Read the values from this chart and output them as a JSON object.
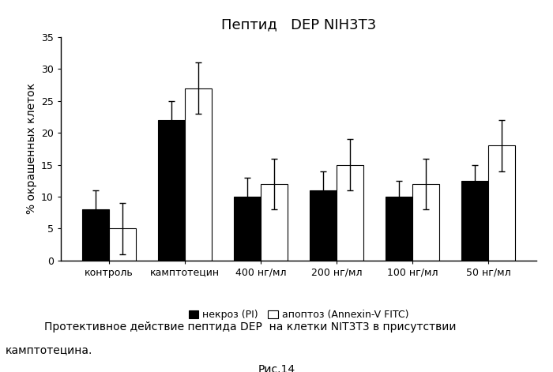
{
  "title": "Пептид   DEP NIH3T3",
  "ylabel": "% окрашенных клеток",
  "categories": [
    "контроль",
    "камптотецин",
    "400 нг/мл",
    "200 нг/мл",
    "100 нг/мл",
    "50 нг/мл"
  ],
  "necrosis_values": [
    8.0,
    22.0,
    10.0,
    11.0,
    10.0,
    12.5
  ],
  "apoptosis_values": [
    5.0,
    27.0,
    12.0,
    15.0,
    12.0,
    18.0
  ],
  "necrosis_errors": [
    3.0,
    3.0,
    3.0,
    3.0,
    2.5,
    2.5
  ],
  "apoptosis_errors": [
    4.0,
    4.0,
    4.0,
    4.0,
    4.0,
    4.0
  ],
  "necrosis_color": "#000000",
  "apoptosis_color": "#ffffff",
  "bar_edge_color": "#000000",
  "ylim": [
    0,
    35
  ],
  "yticks": [
    0,
    5,
    10,
    15,
    20,
    25,
    30,
    35
  ],
  "legend_necrosis": "некроз (PI)",
  "legend_apoptosis": "апоптоз (Annexin-V FITC)",
  "caption_line1": "Протективное действие пептида DEP  на клетки NIT3T3 в присутствии",
  "caption_line2": "камптотецина.",
  "figure_label": "Рис.14",
  "bar_width": 0.35,
  "background_color": "#ffffff",
  "title_fontsize": 13,
  "axis_fontsize": 10,
  "tick_fontsize": 9,
  "legend_fontsize": 9,
  "caption_fontsize": 10
}
